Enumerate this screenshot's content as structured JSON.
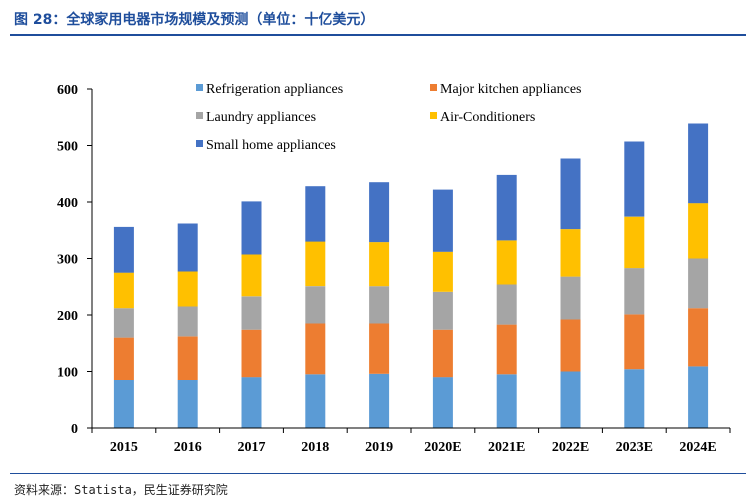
{
  "title": "图 28：全球家用电器市场规模及预测（单位：十亿美元）",
  "source": "资料来源：Statista，民生证券研究院",
  "chart_data": {
    "type": "bar",
    "stacked": true,
    "categories": [
      "2015",
      "2016",
      "2017",
      "2018",
      "2019",
      "2020E",
      "2021E",
      "2022E",
      "2023E",
      "2024E"
    ],
    "series": [
      {
        "name": "Refrigeration appliances",
        "color": "#5b9bd5",
        "values": [
          85,
          85,
          90,
          95,
          96,
          90,
          95,
          100,
          104,
          109
        ]
      },
      {
        "name": "Major kitchen appliances",
        "color": "#ed7d31",
        "values": [
          75,
          77,
          84,
          90,
          89,
          84,
          88,
          92,
          97,
          103
        ]
      },
      {
        "name": "Laundry appliances",
        "color": "#a5a5a5",
        "values": [
          52,
          53,
          59,
          66,
          66,
          67,
          71,
          76,
          82,
          88
        ]
      },
      {
        "name": "Air-Conditioners",
        "color": "#ffc000",
        "values": [
          63,
          62,
          74,
          79,
          78,
          71,
          78,
          84,
          91,
          98
        ]
      },
      {
        "name": "Small home appliances",
        "color": "#4472c4",
        "values": [
          81,
          85,
          94,
          98,
          106,
          110,
          116,
          125,
          133,
          141
        ]
      }
    ],
    "yticks": [
      0,
      100,
      200,
      300,
      400,
      500,
      600
    ],
    "ylim": [
      0,
      600
    ],
    "xlabel": "",
    "ylabel": "",
    "legend_position": "top"
  }
}
